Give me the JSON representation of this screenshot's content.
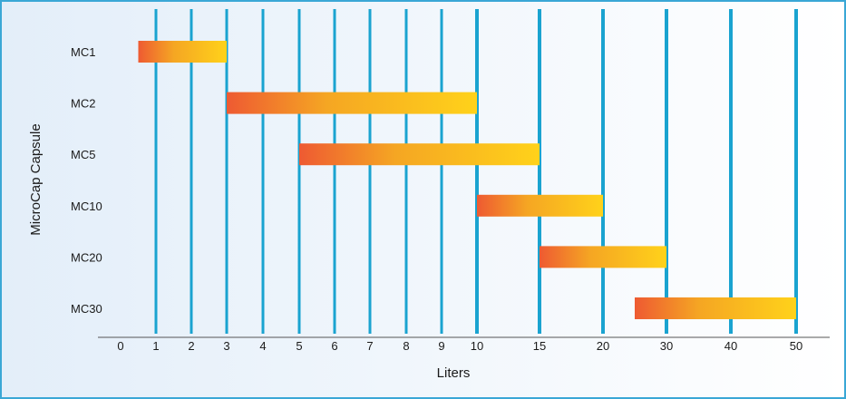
{
  "chart_data": {
    "type": "bar",
    "orientation": "horizontal-range",
    "title": "",
    "xlabel": "Liters",
    "ylabel": "MicroCap Capsule",
    "categories": [
      "MC1",
      "MC2",
      "MC5",
      "MC10",
      "MC20",
      "MC30"
    ],
    "ranges": [
      {
        "category": "MC1",
        "start": 0.5,
        "end": 3
      },
      {
        "category": "MC2",
        "start": 3,
        "end": 10
      },
      {
        "category": "MC5",
        "start": 5,
        "end": 15
      },
      {
        "category": "MC10",
        "start": 10,
        "end": 20
      },
      {
        "category": "MC20",
        "start": 15,
        "end": 30
      },
      {
        "category": "MC30",
        "start": 25,
        "end": 50
      }
    ],
    "x_ticks": [
      "0",
      "1",
      "2",
      "3",
      "4",
      "5",
      "6",
      "7",
      "8",
      "9",
      "10",
      "15",
      "20",
      "30",
      "40",
      "50"
    ],
    "x_scale": "piecewise",
    "grid": "vertical",
    "colors": {
      "bar_start": "#ee5a32",
      "bar_mid": "#f5a623",
      "bar_end": "#ffd21a",
      "gridline": "#1aa3d0",
      "frame": "#3aa7d6",
      "background_left": "#e3eef9",
      "background_right": "#ffffff"
    }
  }
}
